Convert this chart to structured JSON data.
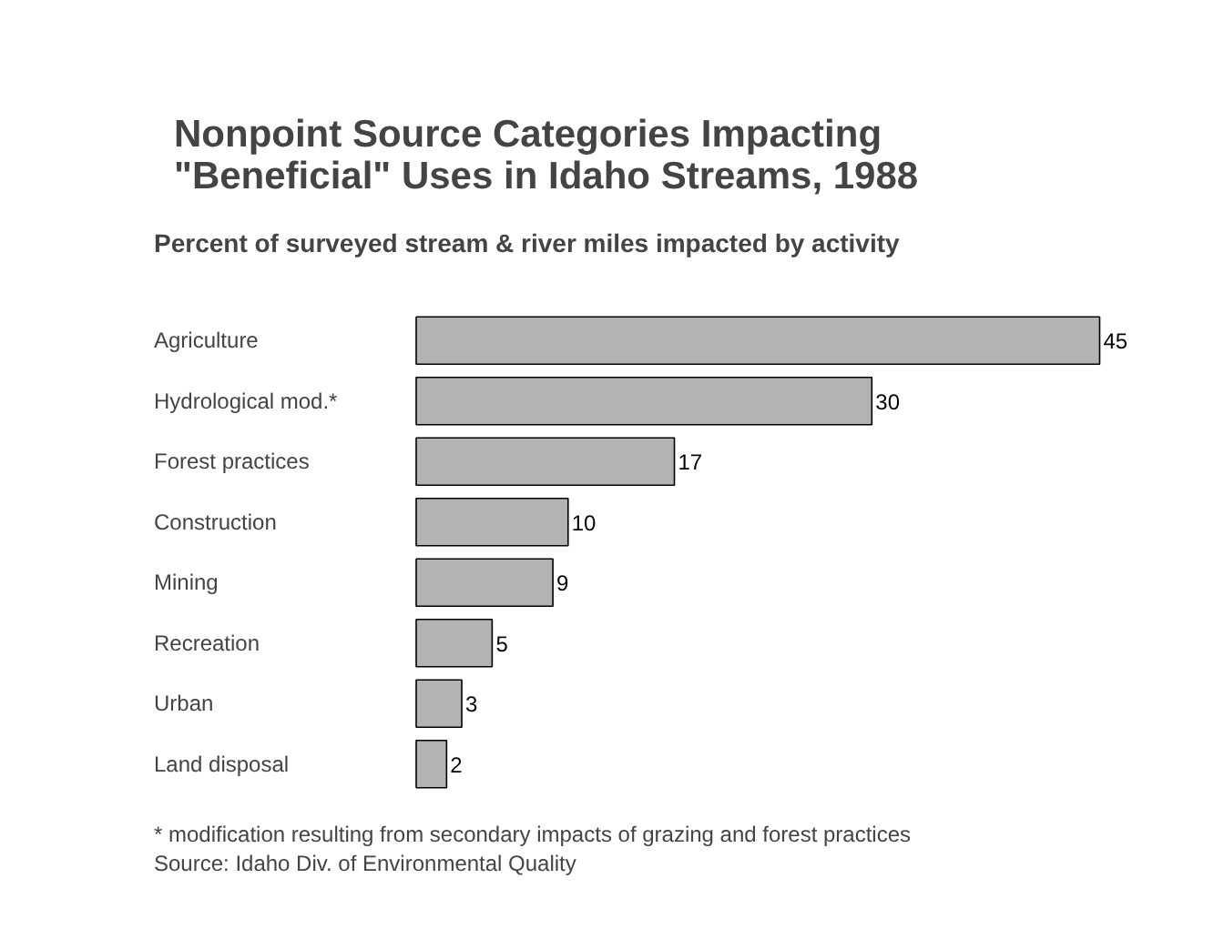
{
  "chart_data": {
    "type": "bar",
    "orientation": "horizontal",
    "title": "Nonpoint Source Categories Impacting\n\"Beneficial\" Uses in Idaho Streams, 1988",
    "subtitle": "Percent of surveyed stream & river miles impacted by activity",
    "categories": [
      "Agriculture",
      "Hydrological mod.*",
      "Forest practices",
      "Construction",
      "Mining",
      "Recreation",
      "Urban",
      "Land disposal"
    ],
    "values": [
      45,
      30,
      17,
      10,
      9,
      5,
      3,
      2
    ],
    "color": "#b3b3b3",
    "data_labels": true,
    "grid": false,
    "annotations": [
      "* modification resulting from  secondary impacts of grazing and forest practices",
      "Source: Idaho Div. of Environmental Quality"
    ]
  }
}
